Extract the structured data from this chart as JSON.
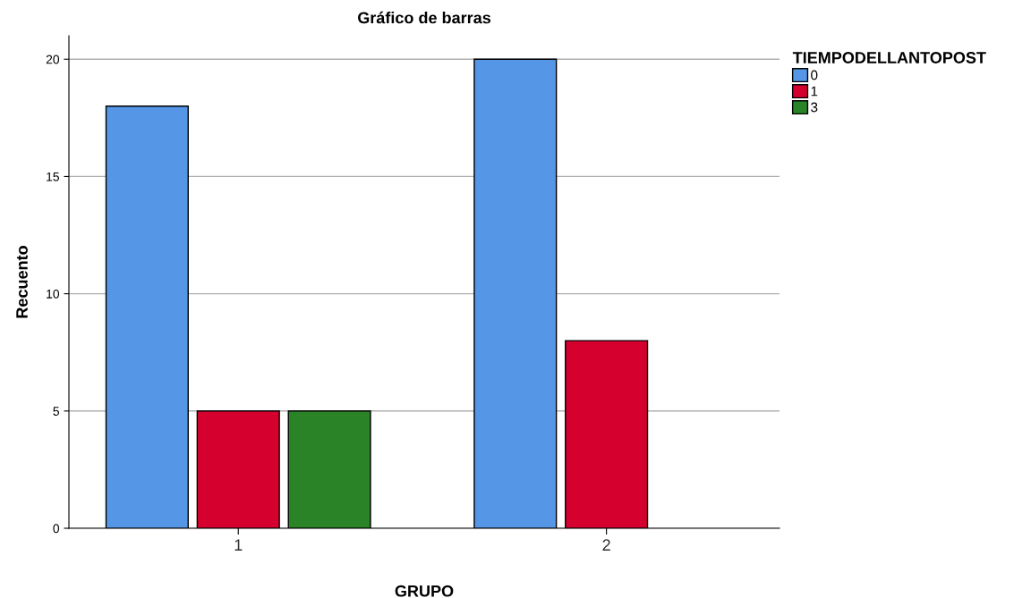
{
  "chart_data": {
    "type": "bar",
    "title": "Gráfico de barras",
    "xlabel": "GRUPO",
    "ylabel": "Recuento",
    "legend_title": "TIEMPODELLANTOPOST",
    "categories": [
      "1",
      "2"
    ],
    "series": [
      {
        "name": "0",
        "color": "#5596e6",
        "values": [
          18,
          20
        ]
      },
      {
        "name": "1",
        "color": "#d6002e",
        "values": [
          5,
          8
        ]
      },
      {
        "name": "3",
        "color": "#2a8427",
        "values": [
          5,
          null
        ]
      }
    ],
    "ylim": [
      0,
      21
    ],
    "yticks": [
      0,
      5,
      10,
      15,
      20
    ],
    "grid": "y",
    "legend": "top right"
  }
}
